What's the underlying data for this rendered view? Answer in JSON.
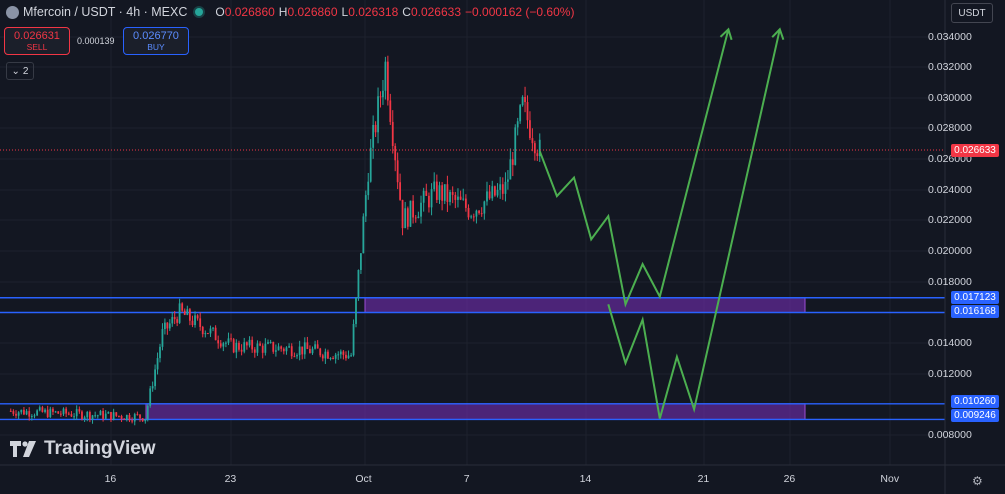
{
  "header": {
    "symbol_title": "Mfercoin / USDT · 4h · MEXC",
    "o_label": "O",
    "o_value": "0.026860",
    "h_label": "H",
    "h_value": "0.026860",
    "l_label": "L",
    "l_value": "0.026318",
    "c_label": "C",
    "c_value": "0.026633",
    "change": "−0.000162 (−0.60%)"
  },
  "trade": {
    "sell_price": "0.026631",
    "sell_label": "SELL",
    "spread": "0.000139",
    "buy_price": "0.026770",
    "buy_label": "BUY"
  },
  "indicators_toggle": "2",
  "currency": "USDT",
  "price_axis": {
    "ticks": [
      "0.034000",
      "0.032000",
      "0.030000",
      "0.028000",
      "0.026000",
      "0.024000",
      "0.022000",
      "0.020000",
      "0.018000",
      "0.014000",
      "0.012000",
      "0.008000"
    ],
    "tags": {
      "last_price": "0.026633",
      "zone1_top": "0.017123",
      "zone1_bottom": "0.016168",
      "zone2_top": "0.010260",
      "zone2_bottom": "0.009246"
    }
  },
  "time_axis": [
    "16",
    "23",
    "Oct",
    "7",
    "14",
    "21",
    "26",
    "Nov"
  ],
  "branding": "TradingView",
  "colors": {
    "up": "#26a69a",
    "down": "#f23645",
    "zone_line": "#2962ff",
    "zone_fill": "#7b2fbf",
    "projection": "#4caf50",
    "background": "#131722"
  },
  "chart_data": {
    "type": "line",
    "title": "Mfercoin / USDT · 4h · MEXC",
    "y_axis_range": [
      0.0075,
      0.0355
    ],
    "last_price": 0.026633,
    "zones": [
      {
        "top": 0.017123,
        "bottom": 0.016168
      },
      {
        "top": 0.01026,
        "bottom": 0.009246
      }
    ],
    "price_path": [
      {
        "x": "Sep 10",
        "y": 0.0098
      },
      {
        "x": "Sep 14",
        "y": 0.0096
      },
      {
        "x": "Sep 18",
        "y": 0.0094
      },
      {
        "x": "Sep 19",
        "y": 0.0148
      },
      {
        "x": "Sep 20",
        "y": 0.0162
      },
      {
        "x": "Sep 23",
        "y": 0.014
      },
      {
        "x": "Sep 27",
        "y": 0.0138
      },
      {
        "x": "Sep 30",
        "y": 0.0134
      },
      {
        "x": "Oct 1",
        "y": 0.0255
      },
      {
        "x": "Oct 2",
        "y": 0.0322
      },
      {
        "x": "Oct 3",
        "y": 0.0222
      },
      {
        "x": "Oct 5",
        "y": 0.024
      },
      {
        "x": "Oct 7",
        "y": 0.0228
      },
      {
        "x": "Oct 9",
        "y": 0.0242
      },
      {
        "x": "Oct 10",
        "y": 0.0295
      },
      {
        "x": "Oct 11",
        "y": 0.0266
      }
    ],
    "projection_1": [
      {
        "x": "Oct 11",
        "y": 0.0266
      },
      {
        "x": "Oct 12",
        "y": 0.0237
      },
      {
        "x": "Oct 13",
        "y": 0.0249
      },
      {
        "x": "Oct 14",
        "y": 0.0209
      },
      {
        "x": "Oct 15",
        "y": 0.0224
      },
      {
        "x": "Oct 16",
        "y": 0.0167
      },
      {
        "x": "Oct 17",
        "y": 0.0193
      },
      {
        "x": "Oct 18",
        "y": 0.0172
      },
      {
        "x": "Oct 22",
        "y": 0.0345
      }
    ],
    "projection_2": [
      {
        "x": "Oct 15",
        "y": 0.0167
      },
      {
        "x": "Oct 16",
        "y": 0.0129
      },
      {
        "x": "Oct 17",
        "y": 0.0157
      },
      {
        "x": "Oct 18",
        "y": 0.0093
      },
      {
        "x": "Oct 19",
        "y": 0.0133
      },
      {
        "x": "Oct 20",
        "y": 0.0099
      },
      {
        "x": "Oct 25",
        "y": 0.0345
      }
    ]
  }
}
